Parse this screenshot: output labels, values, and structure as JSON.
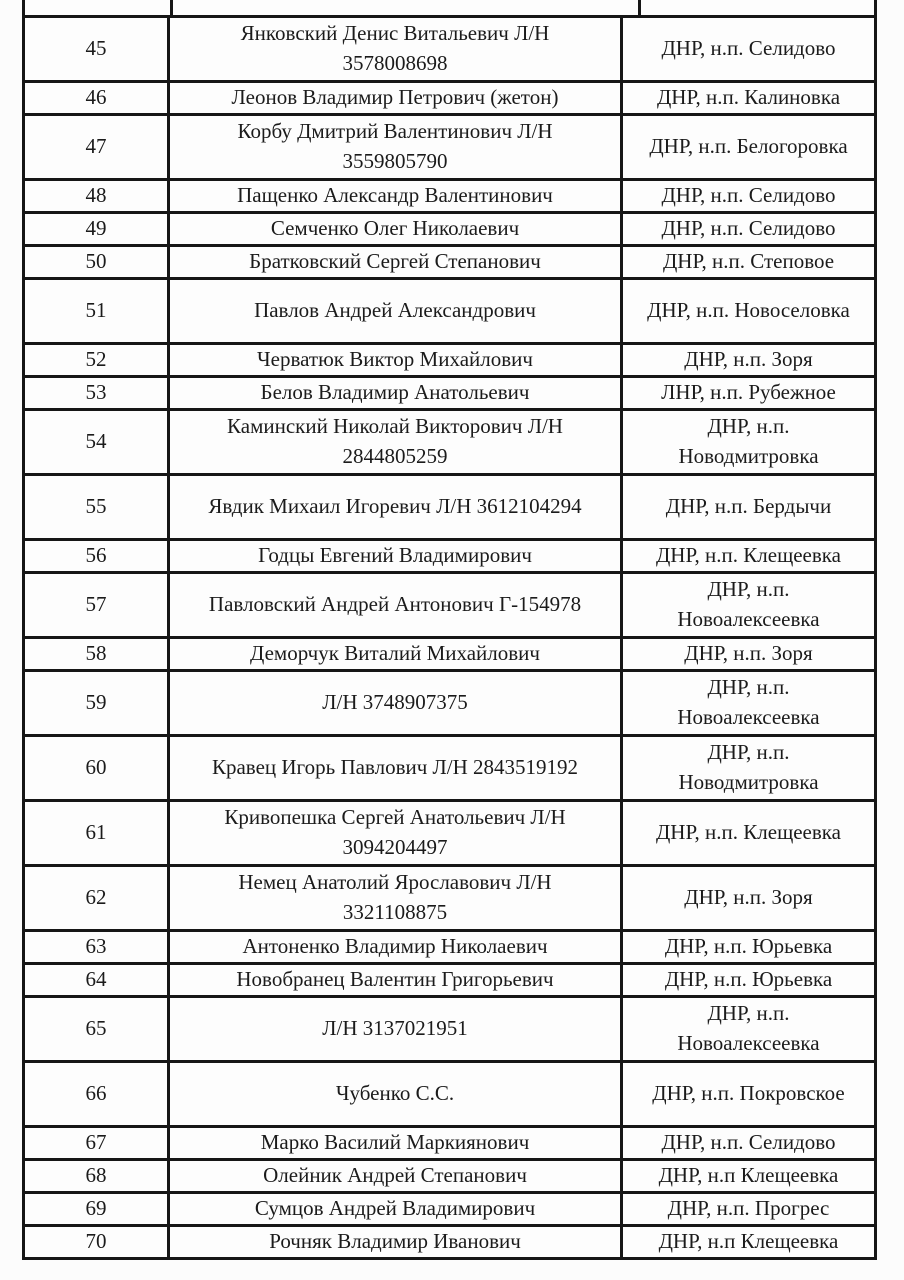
{
  "document": {
    "type": "scanned-table-page",
    "columns": [
      "number",
      "name",
      "location"
    ],
    "ink_color": "#161616",
    "paper_color": "#fcfcfc"
  },
  "rows": [
    {
      "num": "45",
      "name": "Янковский Денис Витальевич Л/Н\n3578008698",
      "loc": "ДНР, н.п. Селидово",
      "tall": true
    },
    {
      "num": "46",
      "name": "Леонов Владимир Петрович (жетон)",
      "loc": "ДНР, н.п. Калиновка",
      "tall": false
    },
    {
      "num": "47",
      "name": "Корбу Дмитрий Валентинович Л/Н\n3559805790",
      "loc": "ДНР, н.п. Белогоровка",
      "tall": true
    },
    {
      "num": "48",
      "name": "Пащенко Александр Валентинович",
      "loc": "ДНР, н.п. Селидово",
      "tall": false
    },
    {
      "num": "49",
      "name": "Семченко Олег Николаевич",
      "loc": "ДНР, н.п. Селидово",
      "tall": false
    },
    {
      "num": "50",
      "name": "Братковский Сергей Степанович",
      "loc": "ДНР, н.п. Степовое",
      "tall": false
    },
    {
      "num": "51",
      "name": "Павлов Андрей Александрович",
      "loc": "ДНР, н.п. Новоселовка",
      "tall": true
    },
    {
      "num": "52",
      "name": "Черватюк Виктор Михайлович",
      "loc": "ДНР, н.п. Зоря",
      "tall": false
    },
    {
      "num": "53",
      "name": "Белов Владимир Анатольевич",
      "loc": "ЛНР, н.п. Рубежное",
      "tall": false
    },
    {
      "num": "54",
      "name": "Каминский Николай Викторович Л/Н\n2844805259",
      "loc": "ДНР, н.п.\nНоводмитровка",
      "tall": true
    },
    {
      "num": "55",
      "name": "Явдик Михаил Игоревич Л/Н 3612104294",
      "loc": "ДНР, н.п. Бердычи",
      "tall": true
    },
    {
      "num": "56",
      "name": "Годцы Евгений Владимирович",
      "loc": "ДНР, н.п. Клещеевка",
      "tall": false
    },
    {
      "num": "57",
      "name": "Павловский Андрей Антонович Г-154978",
      "loc": "ДНР, н.п.\nНовоалексеевка",
      "tall": true
    },
    {
      "num": "58",
      "name": "Деморчук Виталий Михайлович",
      "loc": "ДНР, н.п. Зоря",
      "tall": false
    },
    {
      "num": "59",
      "name": "Л/Н 3748907375",
      "loc": "ДНР, н.п.\nНовоалексеевка",
      "tall": true
    },
    {
      "num": "60",
      "name": "Кравец Игорь Павлович Л/Н 2843519192",
      "loc": "ДНР, н.п.\nНоводмитровка",
      "tall": true
    },
    {
      "num": "61",
      "name": "Кривопешка Сергей Анатольевич Л/Н\n3094204497",
      "loc": "ДНР, н.п. Клещеевка",
      "tall": true
    },
    {
      "num": "62",
      "name": "Немец Анатолий Ярославович Л/Н\n3321108875",
      "loc": "ДНР, н.п. Зоря",
      "tall": true
    },
    {
      "num": "63",
      "name": "Антоненко Владимир Николаевич",
      "loc": "ДНР, н.п. Юрьевка",
      "tall": false
    },
    {
      "num": "64",
      "name": "Новобранец Валентин Григорьевич",
      "loc": "ДНР, н.п. Юрьевка",
      "tall": false
    },
    {
      "num": "65",
      "name": "Л/Н 3137021951",
      "loc": "ДНР, н.п.\nНовоалексеевка",
      "tall": true
    },
    {
      "num": "66",
      "name": "Чубенко С.С.",
      "loc": "ДНР, н.п. Покровское",
      "tall": true
    },
    {
      "num": "67",
      "name": "Марко Василий Маркиянович",
      "loc": "ДНР, н.п. Селидово",
      "tall": false
    },
    {
      "num": "68",
      "name": "Олейник Андрей Степанович",
      "loc": "ДНР, н.п Клещеевка",
      "tall": false
    },
    {
      "num": "69",
      "name": "Сумцов Андрей Владимирович",
      "loc": "ДНР, н.п. Прогрес",
      "tall": false
    },
    {
      "num": "70",
      "name": "Рочняк Владимир Иванович",
      "loc": "ДНР, н.п Клещеевка",
      "tall": false
    }
  ]
}
